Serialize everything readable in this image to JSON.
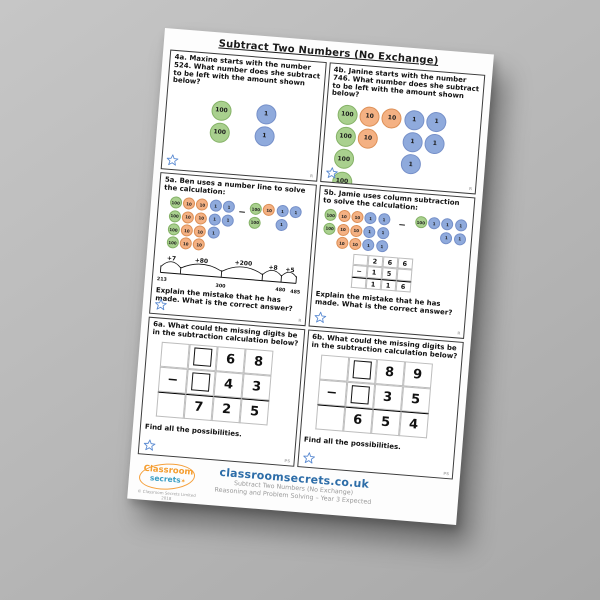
{
  "colors": {
    "green": "#a9d08e",
    "orange": "#f4b183",
    "blue": "#8faadc",
    "brandblue": "#2d6da8",
    "staroutline": "#5b8bd2"
  },
  "title": "Subtract Two Numbers (No Exchange)",
  "minus": "−",
  "corner_r": "R",
  "corner_ps": "PS",
  "find_text": "Find all the possibilities.",
  "explain_text": "Explain the mistake that he has made. What is the correct answer?",
  "q4a": {
    "text": "4a. Maxine starts with the number 524. What number does she subtract to be left with the amount shown below?",
    "circles": {
      "rows": [
        [
          "100",
          "",
          "1"
        ],
        [
          "100",
          "",
          "1"
        ]
      ]
    }
  },
  "q4b": {
    "text": "4b. Janine starts with the number 746. What number does she subtract to be left with the amount shown below?",
    "circles": {
      "rows": [
        [
          "100",
          "10",
          "10",
          "1",
          "1"
        ],
        [
          "100",
          "10",
          "",
          "1",
          "1"
        ],
        [
          "100",
          "",
          "",
          "1",
          ""
        ],
        [
          "100",
          "",
          "",
          "",
          ""
        ]
      ]
    }
  },
  "q5a": {
    "text": "5a. Ben uses a number line to solve the calculation:",
    "left": {
      "rows": [
        [
          "100",
          "10",
          "10",
          "1",
          "1"
        ],
        [
          "100",
          "10",
          "10",
          "1",
          "1"
        ],
        [
          "100",
          "10",
          "10",
          "1",
          ""
        ],
        [
          "100",
          "10",
          "10",
          "",
          ""
        ]
      ]
    },
    "right": {
      "rows": [
        [
          "100",
          "10",
          "1",
          "1"
        ],
        [
          "100",
          "",
          "1",
          ""
        ]
      ]
    },
    "numberline": {
      "jumps": [
        "+7",
        "+80",
        "+200",
        "+8",
        "+5"
      ],
      "ticks": [
        "213",
        "",
        "300",
        "",
        "480",
        "485"
      ]
    }
  },
  "q5b": {
    "text": "5b. Jamie uses column subtraction to solve the calculation:",
    "left": {
      "rows": [
        [
          "100",
          "10",
          "10",
          "1",
          "1"
        ],
        [
          "100",
          "10",
          "10",
          "1",
          "1"
        ],
        [
          "",
          "10",
          "10",
          "1",
          "1"
        ]
      ]
    },
    "right": {
      "rows": [
        [
          "100",
          "1",
          "1",
          "1"
        ],
        [
          "",
          "",
          "1",
          "1"
        ]
      ]
    },
    "table": {
      "rows": [
        [
          "",
          "2",
          "6",
          "6"
        ],
        [
          "−",
          "1",
          "5",
          ""
        ],
        [
          "",
          "1",
          "1",
          "6"
        ]
      ]
    }
  },
  "q6a": {
    "text": "6a. What could the missing digits be in the subtraction calculation below?",
    "table": {
      "rows": [
        [
          "",
          "box",
          "6",
          "8"
        ],
        [
          "−",
          "box",
          "4",
          "3"
        ],
        [
          "",
          "7",
          "2",
          "5"
        ]
      ]
    }
  },
  "q6b": {
    "text": "6b. What could the missing digits be in the subtraction calculation below?",
    "table": {
      "rows": [
        [
          "",
          "box",
          "8",
          "9"
        ],
        [
          "−",
          "box",
          "3",
          "5"
        ],
        [
          "",
          "6",
          "5",
          "4"
        ]
      ]
    }
  },
  "footer": {
    "logo_line1": "Classroom",
    "logo_line2": "secrets",
    "logo_star": "✶",
    "copyright": "© Classroom Secrets Limited 2018",
    "url": "classroomsecrets.co.uk",
    "line1": "Subtract Two Numbers (No Exchange)",
    "line2": "Reasoning and Problem Solving – Year 3 Expected"
  }
}
